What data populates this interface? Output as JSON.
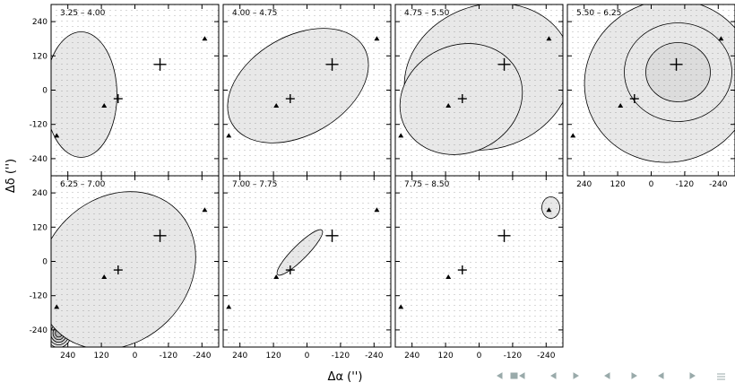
{
  "chart_data": {
    "type": "contour",
    "x_label": "Δα ('')",
    "y_label": "Δδ ('')",
    "xlim": [
      300,
      -300
    ],
    "ylim": [
      -300,
      300
    ],
    "xticks": [
      240,
      120,
      0,
      -120,
      -240
    ],
    "yticks": [
      240,
      120,
      0,
      -120,
      -240
    ],
    "grid": true,
    "panels": [
      {
        "label": "3.25 – 4.00"
      },
      {
        "label": "4.00 – 4.75"
      },
      {
        "label": "4.75 – 5.50"
      },
      {
        "label": "5.50 – 6.25"
      },
      {
        "label": "6.25 – 7.00"
      },
      {
        "label": "7.00 – 7.75"
      },
      {
        "label": "7.75 – 8.50"
      }
    ],
    "crosses": {
      "x": [
        -90,
        60
      ],
      "y": [
        90,
        -30
      ]
    },
    "triangles": {
      "x": [
        110,
        280,
        -250
      ],
      "y": [
        -55,
        -160,
        180
      ]
    }
  }
}
